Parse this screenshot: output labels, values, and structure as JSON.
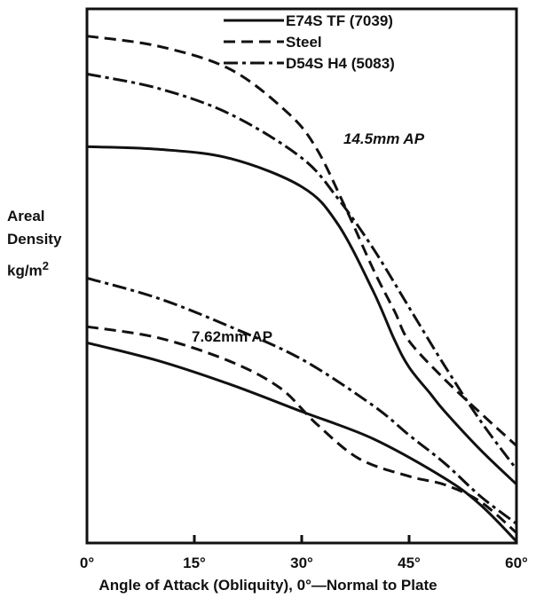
{
  "chart_data": {
    "type": "line",
    "title": "",
    "xlabel": "Angle of Attack (Obliquity), 0°—Normal to Plate",
    "ylabel_lines": [
      "Areal",
      "Density",
      "kg/m"
    ],
    "ylabel_sup": "2",
    "xlim": [
      0,
      60
    ],
    "ylim": [
      0,
      1
    ],
    "y_tick_labels_shown": false,
    "x_ticks": [
      {
        "value": 0,
        "label": "0°"
      },
      {
        "value": 15,
        "label": "15°"
      },
      {
        "value": 30,
        "label": "30°"
      },
      {
        "value": 45,
        "label": "45°"
      },
      {
        "value": 60,
        "label": "60°"
      }
    ],
    "legend": [
      {
        "name": "E74S TF (7039)",
        "style": "solid"
      },
      {
        "name": "Steel",
        "style": "dashed"
      },
      {
        "name": "D54S H4 (5083)",
        "style": "dashdot"
      }
    ],
    "legend_placement": "top-center",
    "groups": [
      {
        "label": "14.5mm AP",
        "series": [
          {
            "name": "E74S TF (7039)",
            "style": "solid",
            "x": [
              0,
              10,
              20,
              30,
              35,
              40,
              43,
              45,
              48,
              50,
              55,
              60
            ],
            "y": [
              0.742,
              0.737,
              0.72,
              0.667,
              0.598,
              0.471,
              0.379,
              0.329,
              0.279,
              0.246,
              0.174,
              0.11
            ]
          },
          {
            "name": "Steel",
            "style": "dashed",
            "x": [
              0,
              10,
              20,
              28,
              32,
              36,
              40,
              43,
              45,
              50,
              55,
              60
            ],
            "y": [
              0.949,
              0.93,
              0.887,
              0.806,
              0.74,
              0.631,
              0.512,
              0.433,
              0.378,
              0.306,
              0.243,
              0.182
            ]
          },
          {
            "name": "D54S H4 (5083)",
            "style": "dashdot",
            "x": [
              0,
              10,
              20,
              30,
              35,
              40,
              45,
              50,
              55,
              60
            ],
            "y": [
              0.878,
              0.851,
              0.803,
              0.721,
              0.646,
              0.551,
              0.441,
              0.331,
              0.228,
              0.138
            ]
          }
        ]
      },
      {
        "label": "7.62mm AP",
        "series": [
          {
            "name": "E74S TF (7039)",
            "style": "solid",
            "x": [
              0,
              10,
              20,
              30,
              40,
              50,
              55,
              60
            ],
            "y": [
              0.375,
              0.341,
              0.297,
              0.246,
              0.195,
              0.121,
              0.071,
              0.003
            ]
          },
          {
            "name": "Steel",
            "style": "dashed",
            "x": [
              0,
              10,
              20,
              27,
              32,
              38,
              45,
              50,
              55,
              60
            ],
            "y": [
              0.405,
              0.384,
              0.34,
              0.29,
              0.224,
              0.158,
              0.125,
              0.109,
              0.077,
              0.019
            ]
          },
          {
            "name": "D54S H4 (5083)",
            "style": "dashdot",
            "x": [
              0,
              10,
              20,
              30,
              40,
              45,
              50,
              55,
              60
            ],
            "y": [
              0.496,
              0.458,
              0.405,
              0.344,
              0.257,
              0.202,
              0.149,
              0.087,
              0.036
            ]
          }
        ]
      }
    ]
  }
}
